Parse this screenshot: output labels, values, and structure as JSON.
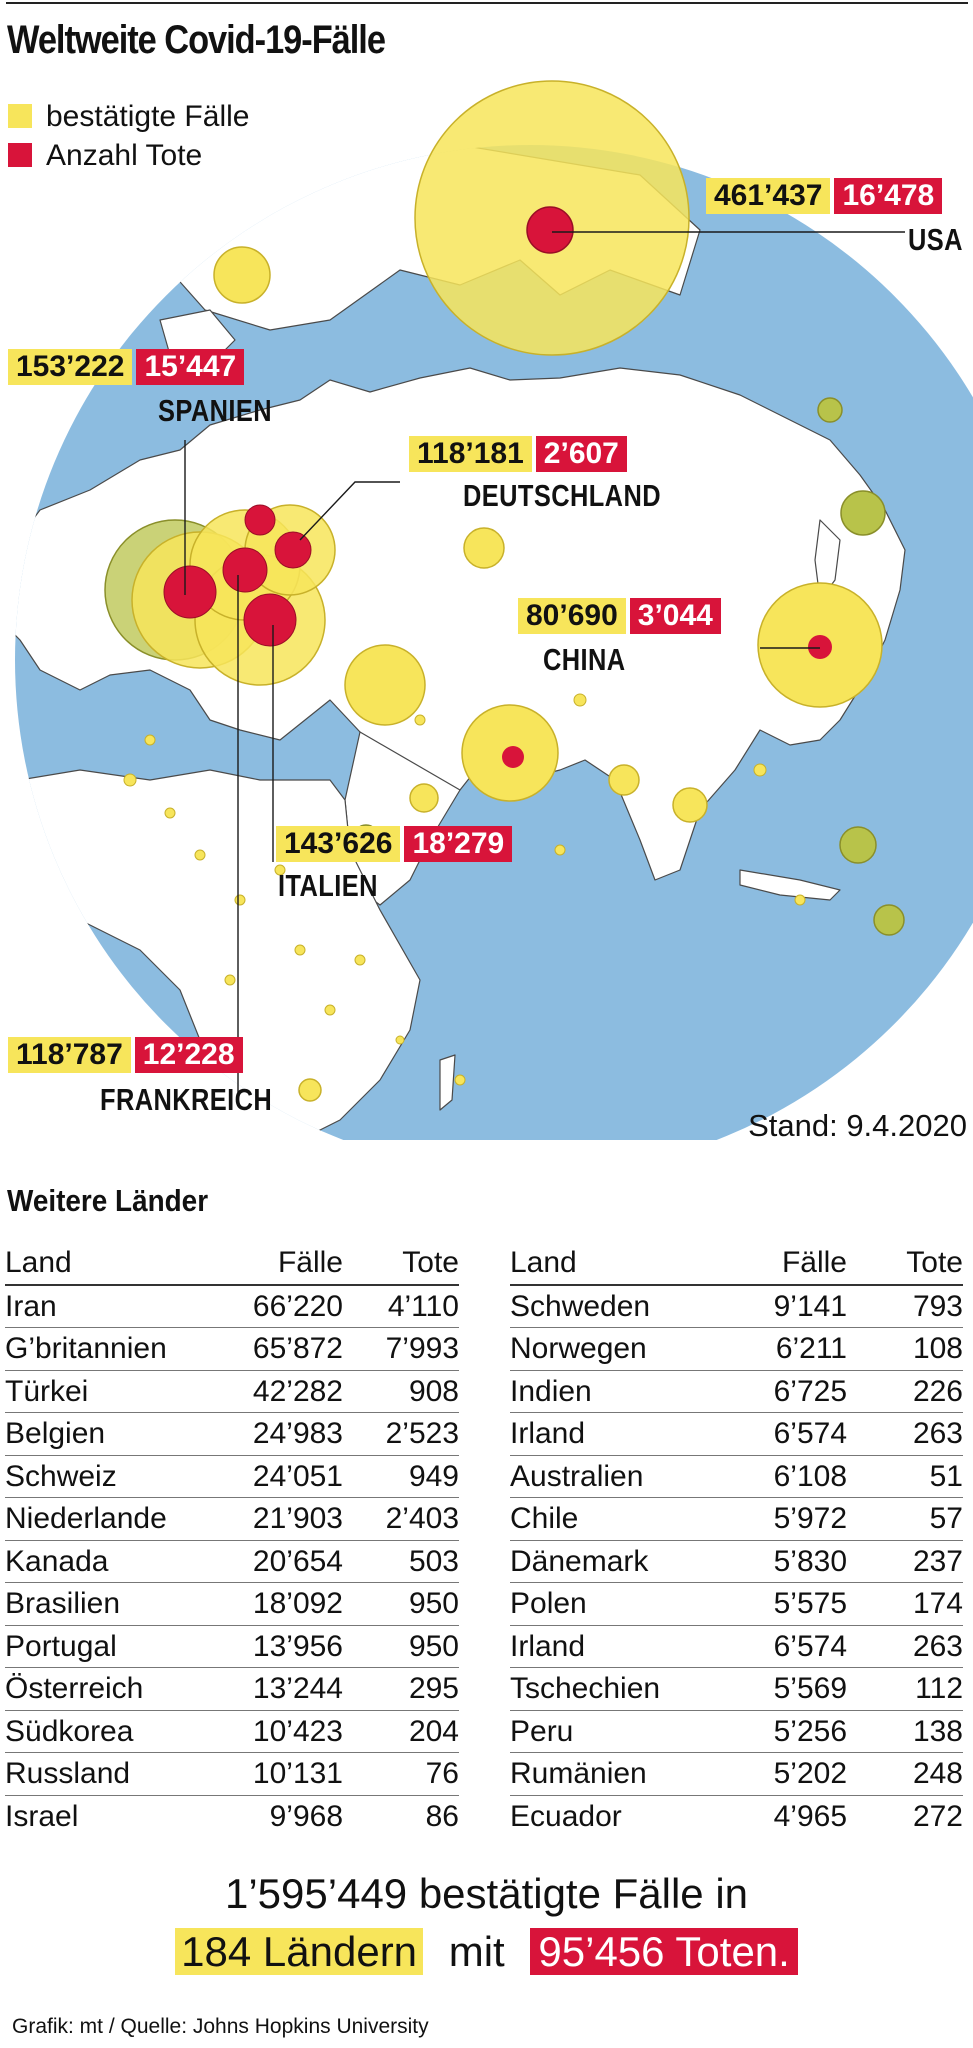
{
  "title": "Weltweite Covid-19-Fälle",
  "legend": {
    "confirmed": "bestätigte Fälle",
    "deaths": "Anzahl Tote"
  },
  "colors": {
    "confirmed": "#f7e55b",
    "deaths": "#d8143a",
    "ocean": "#8cbce0",
    "land": "#ffffff"
  },
  "callouts": {
    "usa": {
      "name": "USA",
      "cases": "461’437",
      "deaths": "16’478"
    },
    "spanien": {
      "name": "SPANIEN",
      "cases": "153’222",
      "deaths": "15’447"
    },
    "deutschland": {
      "name": "DEUTSCHLAND",
      "cases": "118’181",
      "deaths": "2’607"
    },
    "china": {
      "name": "CHINA",
      "cases": "80’690",
      "deaths": "3’044"
    },
    "italien": {
      "name": "ITALIEN",
      "cases": "143’626",
      "deaths": "18’279"
    },
    "frankreich": {
      "name": "FRANKREICH",
      "cases": "118’787",
      "deaths": "12’228"
    }
  },
  "stand": "Stand: 9.4.2020",
  "weitere": {
    "title": "Weitere Länder",
    "headers": {
      "land": "Land",
      "faelle": "Fälle",
      "tote": "Tote"
    },
    "left": [
      {
        "land": "Iran",
        "faelle": "66’220",
        "tote": "4’110"
      },
      {
        "land": "G’britannien",
        "faelle": "65’872",
        "tote": "7’993"
      },
      {
        "land": "Türkei",
        "faelle": "42’282",
        "tote": "908"
      },
      {
        "land": "Belgien",
        "faelle": "24’983",
        "tote": "2’523"
      },
      {
        "land": "Schweiz",
        "faelle": "24’051",
        "tote": "949"
      },
      {
        "land": "Niederlande",
        "faelle": "21’903",
        "tote": "2’403"
      },
      {
        "land": "Kanada",
        "faelle": "20’654",
        "tote": "503"
      },
      {
        "land": "Brasilien",
        "faelle": "18’092",
        "tote": "950"
      },
      {
        "land": "Portugal",
        "faelle": "13’956",
        "tote": "950"
      },
      {
        "land": "Österreich",
        "faelle": "13’244",
        "tote": "295"
      },
      {
        "land": "Südkorea",
        "faelle": "10’423",
        "tote": "204"
      },
      {
        "land": "Russland",
        "faelle": "10’131",
        "tote": "76"
      },
      {
        "land": "Israel",
        "faelle": "9’968",
        "tote": "86"
      }
    ],
    "right": [
      {
        "land": "Schweden",
        "faelle": "9’141",
        "tote": "793"
      },
      {
        "land": "Norwegen",
        "faelle": "6’211",
        "tote": "108"
      },
      {
        "land": "Indien",
        "faelle": "6’725",
        "tote": "226"
      },
      {
        "land": "Irland",
        "faelle": "6’574",
        "tote": "263"
      },
      {
        "land": "Australien",
        "faelle": "6’108",
        "tote": "51"
      },
      {
        "land": "Chile",
        "faelle": "5’972",
        "tote": "57"
      },
      {
        "land": "Dänemark",
        "faelle": "5’830",
        "tote": "237"
      },
      {
        "land": "Polen",
        "faelle": "5’575",
        "tote": "174"
      },
      {
        "land": "Irland",
        "faelle": "6’574",
        "tote": "263"
      },
      {
        "land": "Tschechien",
        "faelle": "5’569",
        "tote": "112"
      },
      {
        "land": "Peru",
        "faelle": "5’256",
        "tote": "138"
      },
      {
        "land": "Rumänien",
        "faelle": "5’202",
        "tote": "248"
      },
      {
        "land": "Ecuador",
        "faelle": "4’965",
        "tote": "272"
      }
    ]
  },
  "total": {
    "line1": "1’595’449 bestätigte Fälle in",
    "countries": "184 Ländern",
    "mit": "mit",
    "deaths": "95’456 Toten."
  },
  "credit": "Grafik: mt / Quelle: Johns Hopkins University"
}
